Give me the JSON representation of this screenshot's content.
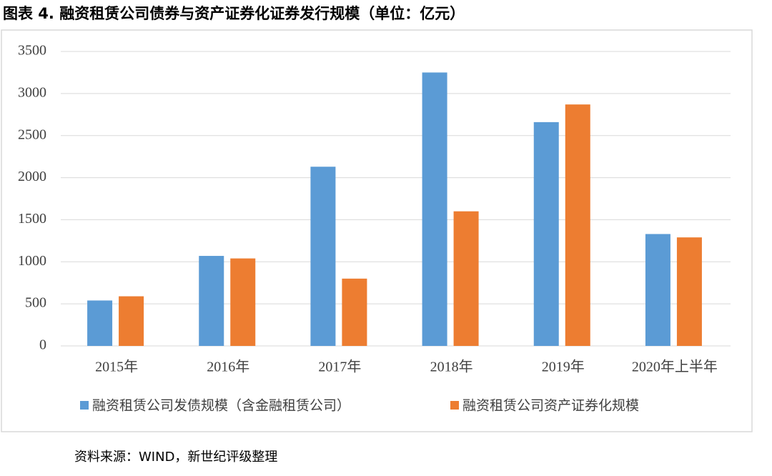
{
  "chart_data": {
    "type": "bar",
    "title": "图表 4. 融资租赁公司债券与资产证券化证券发行规模（单位：亿元）",
    "source": "资料来源：WIND，新世纪评级整理",
    "categories": [
      "2015年",
      "2016年",
      "2017年",
      "2018年",
      "2019年",
      "2020年上半年"
    ],
    "series": [
      {
        "name": "融资租赁公司发债规模（含金融租赁公司）",
        "color": "#5b9bd5",
        "values": [
          540,
          1070,
          2130,
          3250,
          2660,
          1330
        ]
      },
      {
        "name": "融资租赁公司资产证券化规模",
        "color": "#ed7d31",
        "values": [
          590,
          1040,
          800,
          1600,
          2870,
          1290
        ]
      }
    ],
    "ylim": [
      0,
      3500
    ],
    "yticks": [
      0,
      500,
      1000,
      1500,
      2000,
      2500,
      3000,
      3500
    ],
    "grid": true,
    "legend": "bottom"
  }
}
